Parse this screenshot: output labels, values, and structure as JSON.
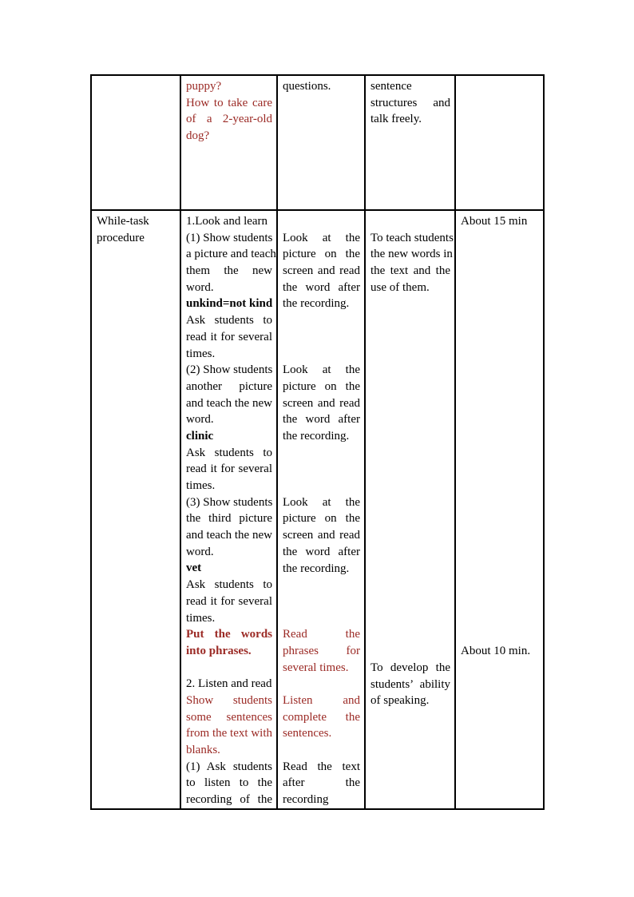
{
  "document": {
    "kind": "lesson-plan-teaching-procedure-page"
  },
  "colors": {
    "dark_red": "#9b2a25",
    "text": "#000000",
    "table_border": "#000000",
    "page_background": "#ffffff"
  },
  "table": {
    "rows": [
      {
        "name": "continuation-row",
        "cells": [
          {
            "col": "stage",
            "blocks": []
          },
          {
            "col": "teacher-activity",
            "blocks": [
              {
                "name": "continued-question",
                "text": "puppy?",
                "color": "dark_red"
              },
              {
                "name": "lead-in-question",
                "text": "How to take care\nof a 2-year-old\ndog?",
                "color": "dark_red"
              }
            ]
          },
          {
            "col": "student-activity",
            "blocks": [
              {
                "name": "student-activity-continued",
                "text": "questions."
              }
            ]
          },
          {
            "col": "purpose",
            "blocks": [
              {
                "name": "purpose-continued",
                "text": "sentence\nstructures and\ntalk freely."
              }
            ]
          },
          {
            "col": "time",
            "blocks": []
          }
        ]
      },
      {
        "name": "while-task-row",
        "cells": [
          {
            "col": "stage",
            "blocks": [
              {
                "name": "stage-title",
                "text": "While-task\nprocedure"
              }
            ]
          },
          {
            "col": "teacher-activity",
            "blocks": [
              {
                "name": "activity-heading",
                "text": "1.Look and learn"
              },
              {
                "name": "teacher-step",
                "text": "(1) Show students\na picture and teach\nthem the new\nword."
              },
              {
                "name": "new-word",
                "text": "unkind=not kind",
                "bold": true
              },
              {
                "name": "teacher-step",
                "text": "Ask students to\nread it for several\ntimes."
              },
              {
                "name": "teacher-step",
                "text": "(2) Show students\nanother picture\nand teach the new\nword."
              },
              {
                "name": "new-word",
                "text": "clinic",
                "bold": true
              },
              {
                "name": "teacher-step",
                "text": "Ask students to\nread it for several\ntimes."
              },
              {
                "name": "teacher-step",
                "text": "(3) Show students\nthe third picture\nand teach the new\nword."
              },
              {
                "name": "new-word",
                "text": "vet",
                "bold": true
              },
              {
                "name": "teacher-step",
                "text": "Ask students to\nread it for several\ntimes."
              },
              {
                "name": "teacher-step-highlight",
                "text": "Put the words\ninto phrases.",
                "bold": true,
                "color": "dark_red"
              },
              {
                "name": "activity-heading",
                "text": "2. Listen and read",
                "gap_before": 1
              },
              {
                "name": "teacher-step-highlight",
                "text": "Show students\nsome sentences\nfrom the text with\nblanks.",
                "color": "dark_red"
              },
              {
                "name": "teacher-step",
                "text": "(1) Ask students\nto listen to the\nrecording of the",
                "justify_last": true
              }
            ]
          },
          {
            "col": "student-activity",
            "blocks": [
              {
                "name": "student-step",
                "text": "Look at the\npicture on the\nscreen and read\nthe word after\nthe recording.",
                "gap_before": 1
              },
              {
                "name": "student-step",
                "text": "Look at the\npicture on the\nscreen and read\nthe word after\nthe recording.",
                "gap_before": 3
              },
              {
                "name": "student-step",
                "text": "Look at the\npicture on the\nscreen and read\nthe word after\nthe recording.",
                "gap_before": 3
              },
              {
                "name": "student-step-highlight",
                "text": "Read the\nphrases for\nseveral times.",
                "color": "dark_red",
                "gap_before": 3
              },
              {
                "name": "student-step-highlight",
                "text": "Listen and\ncomplete the\nsentences.",
                "color": "dark_red",
                "gap_before": 1
              },
              {
                "name": "student-step",
                "text": "Read the text\nafter the\nrecording",
                "gap_before": 1,
                "justify_last": true
              }
            ]
          },
          {
            "col": "purpose",
            "blocks": [
              {
                "name": "purpose-item",
                "text": "To teach students\nthe new words in\nthe text and the\nuse of them.",
                "gap_before": 1
              },
              {
                "name": "purpose-item",
                "text": "To develop the\nstudents’ ability\nof speaking.",
                "gap_before": 22
              }
            ]
          },
          {
            "col": "time",
            "blocks": [
              {
                "name": "time-allocation",
                "text": "About 15 min"
              },
              {
                "name": "time-allocation",
                "text": "About 10 min.",
                "gap_before": 25
              }
            ]
          }
        ]
      }
    ]
  }
}
